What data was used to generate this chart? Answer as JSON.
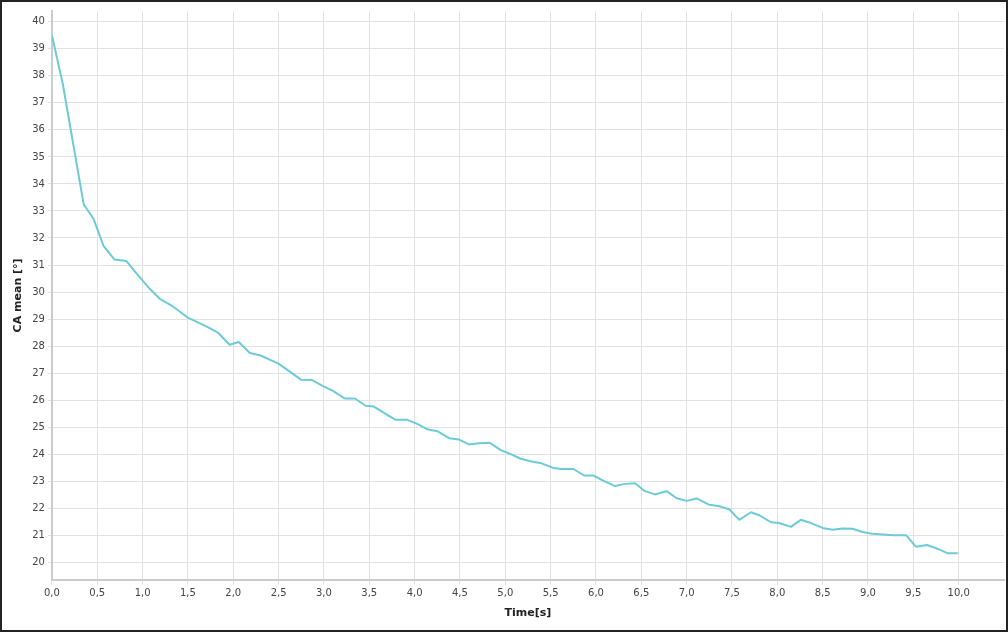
{
  "chart_data": {
    "type": "line",
    "xlabel": "Time[s]",
    "ylabel": "CA mean [°]",
    "grid": true,
    "legend": false,
    "marker": "none",
    "line_style": "solid",
    "xlim": [
      0,
      10.5
    ],
    "ylim": [
      19.35,
      40.4
    ],
    "xticks": [
      {
        "value": 0,
        "label": "0,0"
      },
      {
        "value": 0.5,
        "label": "0,5"
      },
      {
        "value": 1,
        "label": "1,0"
      },
      {
        "value": 1.5,
        "label": "1,5"
      },
      {
        "value": 2,
        "label": "2,0"
      },
      {
        "value": 2.5,
        "label": "2,5"
      },
      {
        "value": 3,
        "label": "3,0"
      },
      {
        "value": 3.5,
        "label": "3,5"
      },
      {
        "value": 4,
        "label": "4,0"
      },
      {
        "value": 4.5,
        "label": "4,5"
      },
      {
        "value": 5,
        "label": "5,0"
      },
      {
        "value": 5.5,
        "label": "5,5"
      },
      {
        "value": 6,
        "label": "6,0"
      },
      {
        "value": 6.5,
        "label": "6,5"
      },
      {
        "value": 7,
        "label": "7,0"
      },
      {
        "value": 7.5,
        "label": "7,5"
      },
      {
        "value": 8,
        "label": "8,0"
      },
      {
        "value": 8.5,
        "label": "8,5"
      },
      {
        "value": 9,
        "label": "9,0"
      },
      {
        "value": 9.5,
        "label": "9,5"
      },
      {
        "value": 10,
        "label": "10,0"
      }
    ],
    "yticks": [
      20,
      21,
      22,
      23,
      24,
      25,
      26,
      27,
      28,
      29,
      30,
      31,
      32,
      33,
      34,
      35,
      36,
      37,
      38,
      39,
      40
    ],
    "x": [
      0,
      0.12,
      0.35,
      0.46,
      0.57,
      0.69,
      0.82,
      0.93,
      1.07,
      1.19,
      1.32,
      1.5,
      1.72,
      1.83,
      1.96,
      2.06,
      2.18,
      2.3,
      2.5,
      2.75,
      2.87,
      2.99,
      3.1,
      3.23,
      3.34,
      3.46,
      3.55,
      3.68,
      3.79,
      3.92,
      4.03,
      4.14,
      4.25,
      4.38,
      4.49,
      4.6,
      4.71,
      4.83,
      4.95,
      5.06,
      5.17,
      5.29,
      5.4,
      5.53,
      5.62,
      5.75,
      5.87,
      5.97,
      6.08,
      6.21,
      6.32,
      6.43,
      6.54,
      6.65,
      6.78,
      6.89,
      7.0,
      7.11,
      7.24,
      7.36,
      7.47,
      7.58,
      7.71,
      7.8,
      7.93,
      8.02,
      8.15,
      8.26,
      8.37,
      8.5,
      8.61,
      8.72,
      8.83,
      8.94,
      9.05,
      9.16,
      9.29,
      9.42,
      9.53,
      9.65,
      9.76,
      9.88,
      9.99
    ],
    "series": [
      {
        "color": "#6ccbd6",
        "values": [
          39.5,
          37.7,
          33.25,
          32.7,
          31.7,
          31.2,
          31.15,
          30.7,
          30.15,
          29.75,
          29.5,
          29.05,
          28.7,
          28.5,
          28.05,
          28.15,
          27.75,
          27.65,
          27.35,
          26.75,
          26.74,
          26.52,
          26.34,
          26.06,
          26.06,
          25.79,
          25.76,
          25.49,
          25.27,
          25.27,
          25.12,
          24.92,
          24.85,
          24.59,
          24.54,
          24.36,
          24.4,
          24.42,
          24.15,
          24.0,
          23.83,
          23.73,
          23.66,
          23.49,
          23.45,
          23.45,
          23.21,
          23.21,
          23.02,
          22.82,
          22.9,
          22.92,
          22.63,
          22.51,
          22.63,
          22.37,
          22.27,
          22.36,
          22.14,
          22.07,
          21.96,
          21.57,
          21.85,
          21.74,
          21.48,
          21.45,
          21.31,
          21.57,
          21.45,
          21.27,
          21.2,
          21.25,
          21.24,
          21.12,
          21.05,
          21.03,
          21.0,
          21.0,
          20.57,
          20.64,
          20.51,
          20.33,
          20.33
        ]
      }
    ]
  }
}
